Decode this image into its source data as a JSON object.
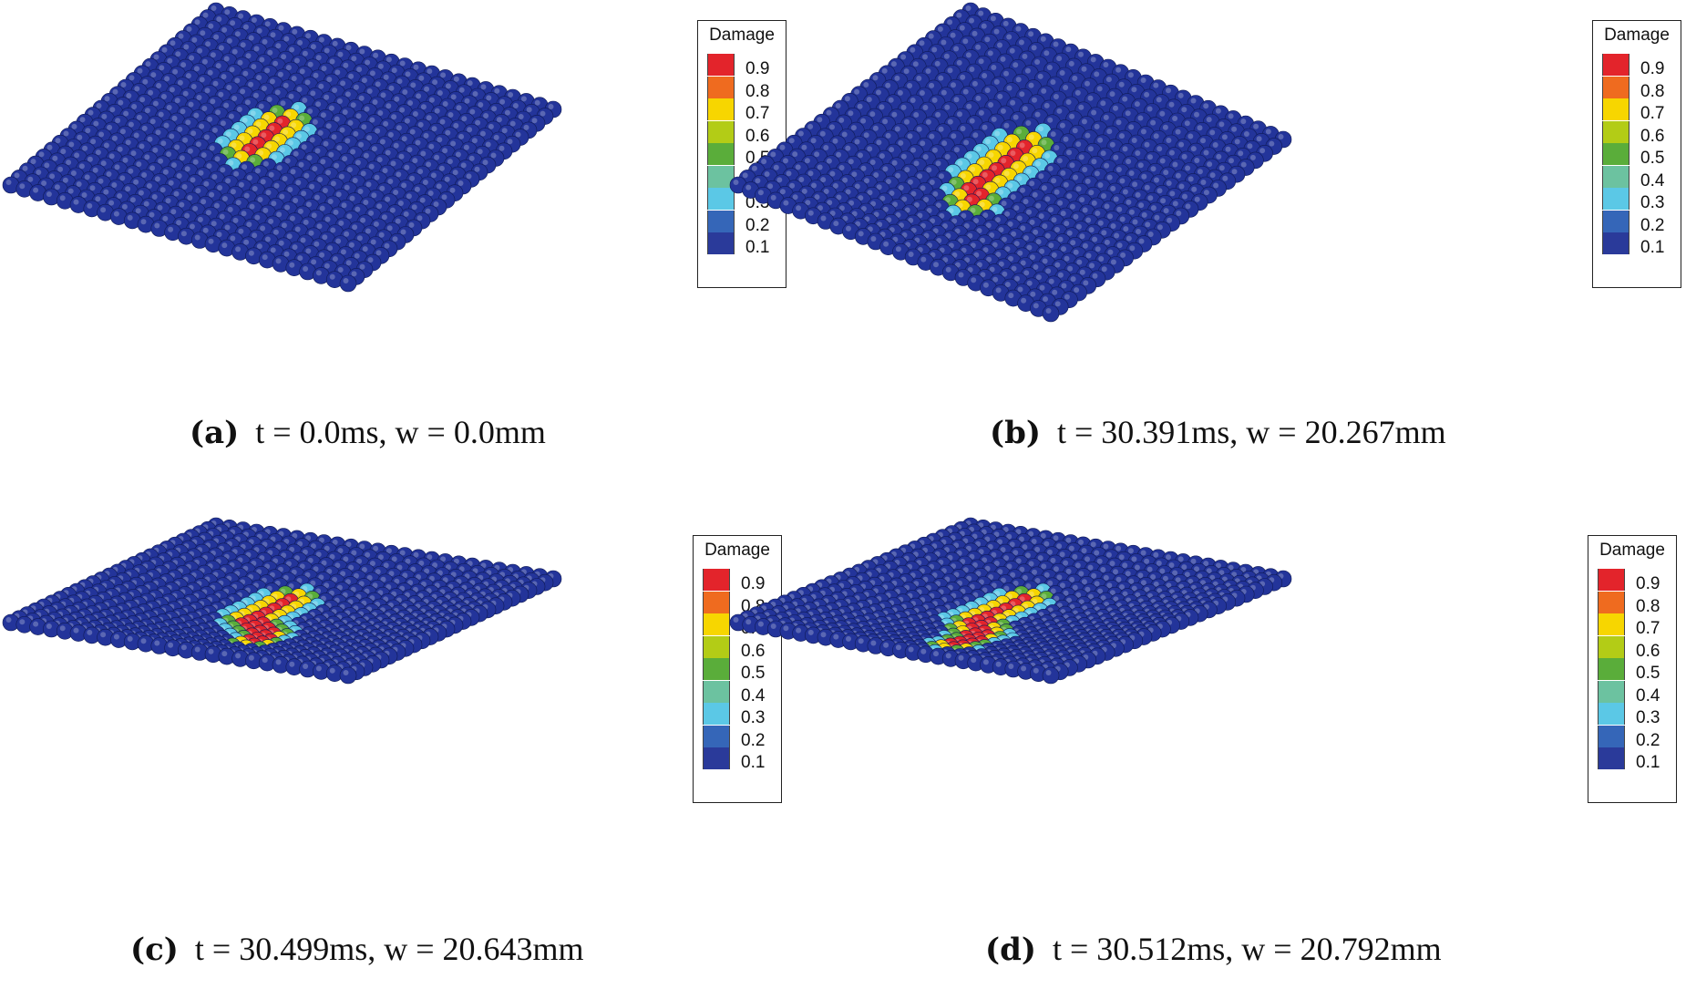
{
  "legend": {
    "title": "Damage",
    "ticks": [
      "0.9",
      "0.8",
      "0.7",
      "0.6",
      "0.5",
      "0.4",
      "0.3",
      "0.2",
      "0.1"
    ],
    "colors": [
      "#e3242b",
      "#ef6b1f",
      "#f7d600",
      "#b3cc16",
      "#5aad3a",
      "#6cc2a0",
      "#5bc8e6",
      "#3566b8",
      "#2a3a9a"
    ]
  },
  "particle_color": "#23349a",
  "panels": [
    {
      "letter": "(a)",
      "formula": "t = 0.0ms, w = 0.0mm",
      "t_ms": 0.0,
      "w_mm": 0.0
    },
    {
      "letter": "(b)",
      "formula": "t = 30.391ms, w = 20.267mm",
      "t_ms": 30.391,
      "w_mm": 20.267
    },
    {
      "letter": "(c)",
      "formula": "t = 30.499ms, w = 20.643mm",
      "t_ms": 30.499,
      "w_mm": 20.643
    },
    {
      "letter": "(d)",
      "formula": "t = 30.512ms, w = 20.792mm",
      "t_ms": 30.512,
      "w_mm": 20.792
    }
  ]
}
